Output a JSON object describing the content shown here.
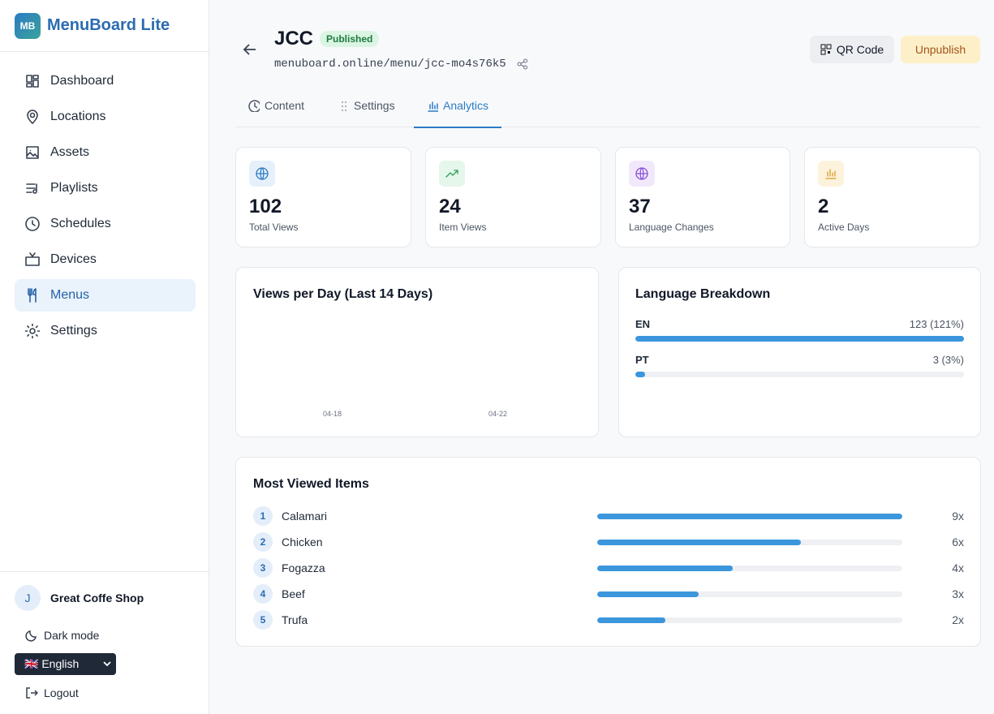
{
  "sidebar": {
    "brand_badge": "MB",
    "brand": "MenuBoard Lite",
    "nav": [
      {
        "label": "Dashboard"
      },
      {
        "label": "Locations"
      },
      {
        "label": "Assets"
      },
      {
        "label": "Playlists"
      },
      {
        "label": "Schedules"
      },
      {
        "label": "Devices"
      },
      {
        "label": "Menus",
        "active": true
      },
      {
        "label": "Settings"
      }
    ],
    "user": {
      "initial": "J",
      "name": "Great Coffe Shop"
    },
    "dark_mode": "Dark mode",
    "language": "🇬🇧 English",
    "logout": "Logout"
  },
  "header": {
    "title": "JCC",
    "status": "Published",
    "url": "menuboard.online/menu/jcc-mo4s76k5",
    "buttons": [
      "QR Code",
      "Unpublish"
    ],
    "tabs": [
      {
        "label": "Content"
      },
      {
        "label": "Settings"
      },
      {
        "label": "Analytics",
        "active": true
      }
    ]
  },
  "stats": [
    {
      "value": 102,
      "label": "Total Views"
    },
    {
      "value": 24,
      "label": "Item Views"
    },
    {
      "value": 37,
      "label": "Language Changes"
    },
    {
      "value": 2,
      "label": "Active Days"
    }
  ],
  "views_chart": {
    "title": "Views per Day (Last 14 Days)",
    "x_labels": [
      "04-18",
      "04-22"
    ]
  },
  "languages": {
    "title": "Language Breakdown",
    "rows": [
      {
        "code": "EN",
        "percent": 121,
        "label": "123 (121%)"
      },
      {
        "code": "PT",
        "percent": 3,
        "label": "3 (3%)"
      }
    ]
  },
  "top_items": {
    "title": "Most Viewed Items",
    "rows": [
      {
        "rank": 1,
        "name": "Calamari",
        "views": 9,
        "label": "9x"
      },
      {
        "rank": 2,
        "name": "Chicken",
        "views": 6,
        "label": "6x"
      },
      {
        "rank": 3,
        "name": "Fogazza",
        "views": 4,
        "label": "4x"
      },
      {
        "rank": 4,
        "name": "Beef",
        "views": 3,
        "label": "3x"
      },
      {
        "rank": 5,
        "name": "Trufa",
        "views": 2,
        "label": "2x"
      }
    ]
  }
}
